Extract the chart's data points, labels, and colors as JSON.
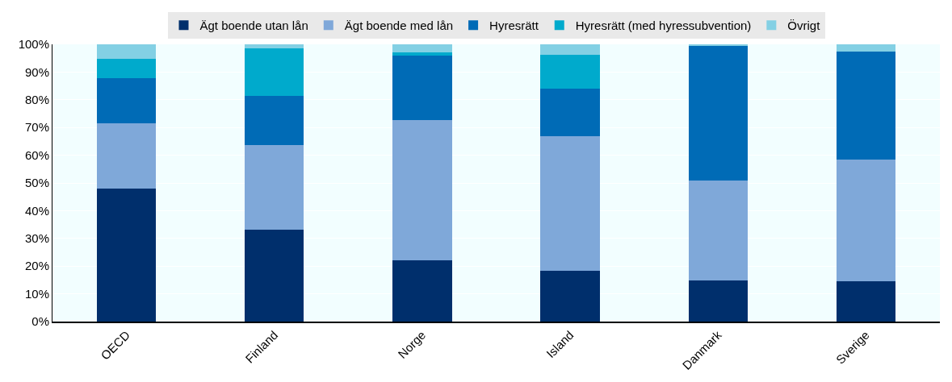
{
  "chart_data": {
    "type": "bar",
    "stacked": true,
    "categories": [
      "OECD",
      "Finland",
      "Norge",
      "Island",
      "Danmark",
      "Sverige"
    ],
    "series": [
      {
        "name": "Ägt boende utan lån",
        "color": "#002f6c",
        "values": [
          48,
          33,
          22.2,
          18.3,
          14.7,
          14.5
        ]
      },
      {
        "name": "Ägt boende med lån",
        "color": "#7fa8d9",
        "values": [
          23.6,
          30.6,
          50.6,
          48.7,
          36.3,
          43.8
        ]
      },
      {
        "name": "Hyresrätt",
        "color": "#006bb6",
        "values": [
          16.2,
          17.9,
          23.1,
          16.9,
          48.5,
          39.1
        ]
      },
      {
        "name": "Hyresrätt (med hyressubvention)",
        "color": "#00aacc",
        "values": [
          6.9,
          17.1,
          1.2,
          12.3,
          0,
          0
        ]
      },
      {
        "name": "Övrigt",
        "color": "#83d0e4",
        "values": [
          5.3,
          1.4,
          2.9,
          3.8,
          0.5,
          2.6
        ]
      }
    ],
    "ylim": [
      0,
      100
    ],
    "yticks": [
      {
        "value": 0,
        "label": "0%"
      },
      {
        "value": 10,
        "label": "10%"
      },
      {
        "value": 20,
        "label": "20%"
      },
      {
        "value": 30,
        "label": "30%"
      },
      {
        "value": 40,
        "label": "40%"
      },
      {
        "value": 50,
        "label": "50%"
      },
      {
        "value": 60,
        "label": "60%"
      },
      {
        "value": 70,
        "label": "70%"
      },
      {
        "value": 80,
        "label": "80%"
      },
      {
        "value": 90,
        "label": "90%"
      },
      {
        "value": 100,
        "label": "100%"
      }
    ],
    "grid": true,
    "legend": "top"
  }
}
